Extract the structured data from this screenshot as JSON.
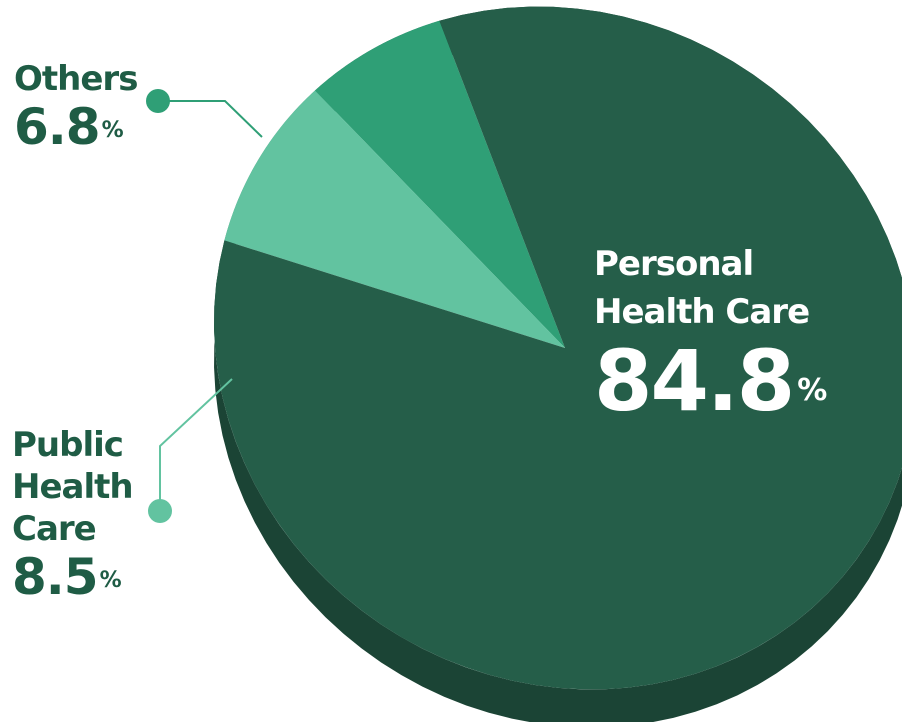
{
  "chart_data": {
    "type": "pie",
    "slices": [
      {
        "label": "Personal Health Care",
        "value": 84.8,
        "color": "#255e49"
      },
      {
        "label": "Public Health Care",
        "value": 8.5,
        "color": "#62c3a0"
      },
      {
        "label": "Others",
        "value": 6.8,
        "color": "#2f9f76"
      }
    ],
    "labels": {
      "personal": {
        "name_line1": "Personal",
        "name_line2": "Health Care",
        "value": "84.8",
        "unit": "%"
      },
      "public": {
        "name_line1": "Public",
        "name_line2": "Health",
        "name_line3": "Care",
        "value": "8.5",
        "unit": "%"
      },
      "others": {
        "name_line1": "Others",
        "value": "6.8",
        "unit": "%"
      }
    }
  }
}
